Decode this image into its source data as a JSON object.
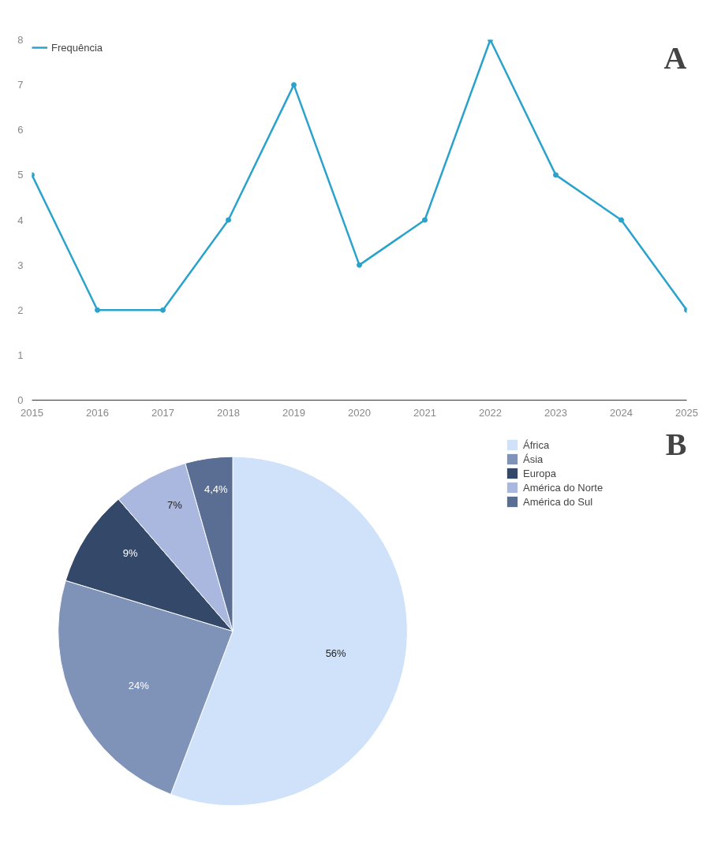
{
  "chart_data": [
    {
      "type": "line",
      "x": [
        2015,
        2016,
        2017,
        2018,
        2019,
        2020,
        2021,
        2022,
        2023,
        2024,
        2025
      ],
      "xlim": [
        2015,
        2025
      ],
      "xticks": [
        2015,
        2016,
        2017,
        2018,
        2019,
        2020,
        2021,
        2022,
        2023,
        2024,
        2025
      ],
      "ylim": [
        0,
        8
      ],
      "yticks": [
        0,
        1,
        2,
        3,
        4,
        5,
        6,
        7,
        8
      ],
      "grid": false,
      "legend": "top left",
      "marker": "circle",
      "line_style": "solid",
      "series": [
        {
          "name": "Frequência",
          "color": "#2aa3cc",
          "values": [
            5,
            2,
            2,
            4,
            7,
            3,
            4,
            8,
            5,
            4,
            2
          ]
        }
      ],
      "annotations": [
        "A"
      ]
    },
    {
      "type": "pie",
      "categories": [
        "África",
        "Ásia",
        "Europa",
        "América do Norte",
        "América do Sul"
      ],
      "values": [
        56,
        24,
        9,
        7,
        4.4
      ],
      "colors": [
        "#cfe2fa",
        "#7f92b8",
        "#34486a",
        "#aab8e0",
        "#5a6e94"
      ],
      "value_labels": [
        "56%",
        "24%",
        "9%",
        "7%",
        "4,4%"
      ],
      "legend": "top right",
      "annotations": [
        "B"
      ]
    }
  ]
}
